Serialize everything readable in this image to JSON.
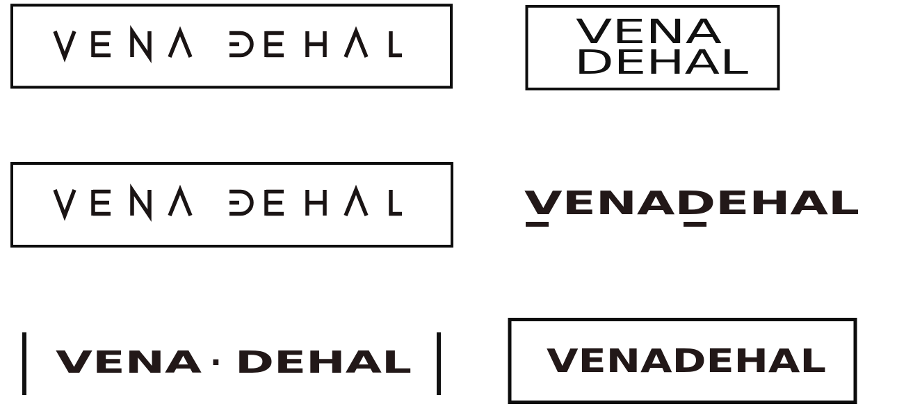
{
  "logos": [
    {
      "id": "logo-1",
      "style": "thin-geometric-boxed",
      "word1": "VENA",
      "word2": "DEHAL"
    },
    {
      "id": "logo-2",
      "style": "stacked-boxed",
      "line1": "VENA",
      "line2": "DEHAL"
    },
    {
      "id": "logo-3",
      "style": "thin-geometric-boxed",
      "word1": "VENA",
      "word2": "DEHAL"
    },
    {
      "id": "logo-4",
      "style": "bold-underlined",
      "text": "VENADEHAL"
    },
    {
      "id": "logo-5",
      "style": "bold-dotted-bars",
      "word1": "VENA",
      "separator": "·",
      "word2": "DEHAL"
    },
    {
      "id": "logo-6",
      "style": "bold-boxed",
      "text": "VENADEHAL"
    }
  ],
  "colors": {
    "ink": "#1a1414",
    "frame": "#0d0d0d",
    "background": "#ffffff"
  }
}
